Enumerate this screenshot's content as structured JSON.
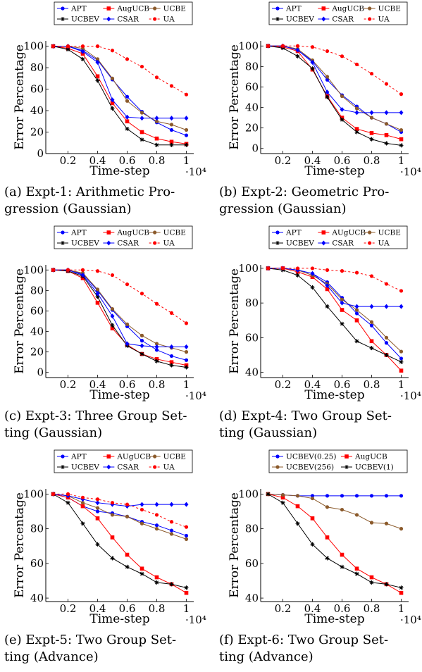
{
  "colors": {
    "APT": "#0000ff",
    "AugUCB": "#ff0000",
    "UCBE": "#8b5a2b",
    "UCBEV": "#000000",
    "CSAR": "#0000ff",
    "UA": "#ff0000"
  },
  "chart_data": [
    {
      "type": "line",
      "caption": [
        "(a) Expt-1: Arithmetic Pro-",
        "gression (Gaussian)"
      ],
      "xlabel": "Time-step",
      "ylabel": "Error Percentage",
      "x_multiplier": "·10⁴",
      "xlim": [
        0.05,
        1.05
      ],
      "ylim": [
        0,
        105
      ],
      "xticks": [
        0.2,
        0.4,
        0.6,
        0.8,
        1
      ],
      "xtick_labels": [
        "0.2",
        "0.4",
        "0.6",
        "0.8",
        "1"
      ],
      "yticks": [
        0,
        20,
        40,
        60,
        80,
        100
      ],
      "ytick_labels": [
        "0",
        "20",
        "40",
        "60",
        "80",
        "100"
      ],
      "legend": {
        "position": "top",
        "entries": [
          "APT",
          "AugUCB",
          "UCBE",
          "UCBEV",
          "CSAR",
          "UA"
        ]
      },
      "x": [
        0.1,
        0.2,
        0.3,
        0.4,
        0.5,
        0.6,
        0.7,
        0.8,
        0.9,
        1.0
      ],
      "series": [
        {
          "name": "APT",
          "values": [
            100,
            100,
            96,
            87,
            69,
            53,
            39,
            29,
            22,
            17
          ]
        },
        {
          "name": "AugUCB",
          "values": [
            100,
            98,
            93,
            72,
            47,
            30,
            20,
            14,
            11,
            9
          ]
        },
        {
          "name": "UCBE",
          "values": [
            100,
            100,
            98,
            88,
            70,
            49,
            38,
            30,
            27,
            22
          ]
        },
        {
          "name": "UCBEV",
          "values": [
            100,
            97,
            88,
            68,
            42,
            23,
            13,
            8,
            8,
            8
          ]
        },
        {
          "name": "CSAR",
          "values": [
            100,
            100,
            95,
            85,
            50,
            34,
            33,
            33,
            33,
            33
          ]
        },
        {
          "name": "UA",
          "values": [
            100,
            100,
            100,
            100,
            96,
            88,
            81,
            71,
            63,
            55
          ]
        }
      ]
    },
    {
      "type": "line",
      "caption": [
        "(b) Expt-2: Geometric Pro-",
        "gression (Gaussian)"
      ],
      "xlabel": "Time-step",
      "ylabel": "Error Percentage",
      "x_multiplier": "·10⁴",
      "xlim": [
        0.05,
        1.05
      ],
      "ylim": [
        -5,
        105
      ],
      "xticks": [
        0.2,
        0.4,
        0.6,
        0.8,
        1
      ],
      "xtick_labels": [
        "0.2",
        "0.4",
        "0.6",
        "0.8",
        "1"
      ],
      "yticks": [
        0,
        20,
        40,
        60,
        80,
        100
      ],
      "ytick_labels": [
        "0",
        "20",
        "40",
        "60",
        "80",
        "100"
      ],
      "legend": {
        "position": "top",
        "entries": [
          "APT",
          "AugUCB",
          "UCBE",
          "UCBEV",
          "CSAR",
          "UA"
        ]
      },
      "x": [
        0.1,
        0.2,
        0.3,
        0.4,
        0.5,
        0.6,
        0.7,
        0.8,
        0.9,
        1.0
      ],
      "series": [
        {
          "name": "APT",
          "values": [
            100,
            100,
            97,
            85,
            67,
            52,
            41,
            30,
            24,
            16
          ]
        },
        {
          "name": "AugUCB",
          "values": [
            100,
            99,
            95,
            77,
            51,
            30,
            19,
            15,
            13,
            9
          ]
        },
        {
          "name": "UCBE",
          "values": [
            100,
            100,
            97,
            86,
            70,
            51,
            39,
            30,
            24,
            18
          ]
        },
        {
          "name": "UCBEV",
          "values": [
            100,
            98,
            90,
            78,
            50,
            28,
            16,
            9,
            5,
            3
          ]
        },
        {
          "name": "CSAR",
          "values": [
            100,
            100,
            96,
            84,
            55,
            38,
            35,
            35,
            35,
            35
          ]
        },
        {
          "name": "UA",
          "values": [
            100,
            100,
            100,
            99,
            95,
            90,
            82,
            73,
            63,
            53
          ]
        }
      ]
    },
    {
      "type": "line",
      "caption": [
        "(c) Expt-3: Three Group Set-",
        "ting (Gaussian)"
      ],
      "xlabel": "Time-step",
      "ylabel": "Error Percentage",
      "x_multiplier": "·10⁴",
      "xlim": [
        0.05,
        1.05
      ],
      "ylim": [
        -5,
        105
      ],
      "xticks": [
        0.2,
        0.4,
        0.6,
        0.8,
        1
      ],
      "xtick_labels": [
        "0.2",
        "0.4",
        "0.6",
        "0.8",
        "1"
      ],
      "yticks": [
        0,
        20,
        40,
        60,
        80,
        100
      ],
      "ytick_labels": [
        "0",
        "20",
        "40",
        "60",
        "80",
        "100"
      ],
      "legend": {
        "position": "top",
        "entries": [
          "APT",
          "AugUCB",
          "UCBE",
          "UCBEV",
          "CSAR",
          "UA"
        ]
      },
      "x": [
        0.1,
        0.2,
        0.3,
        0.4,
        0.5,
        0.6,
        0.7,
        0.8,
        0.9,
        1.0
      ],
      "series": [
        {
          "name": "APT",
          "values": [
            100,
            100,
            96,
            80,
            61,
            45,
            31,
            22,
            16,
            12
          ]
        },
        {
          "name": "AugUCB",
          "values": [
            100,
            99,
            92,
            68,
            43,
            27,
            18,
            13,
            10,
            7
          ]
        },
        {
          "name": "UCBE",
          "values": [
            100,
            100,
            97,
            81,
            62,
            47,
            36,
            28,
            24,
            20
          ]
        },
        {
          "name": "UCBEV",
          "values": [
            100,
            99,
            94,
            74,
            46,
            26,
            18,
            11,
            7,
            5
          ]
        },
        {
          "name": "CSAR",
          "values": [
            100,
            100,
            95,
            77,
            55,
            28,
            26,
            25,
            25,
            25
          ]
        },
        {
          "name": "UA",
          "values": [
            100,
            100,
            100,
            99,
            95,
            86,
            77,
            67,
            58,
            48
          ]
        }
      ]
    },
    {
      "type": "line",
      "caption": [
        "(d) Expt-4: Two Group Set-",
        "ting (Gaussian)"
      ],
      "xlabel": "Time-step",
      "ylabel": "Error Percentage",
      "x_multiplier": "·10⁴",
      "xlim": [
        0.05,
        1.05
      ],
      "ylim": [
        37,
        102
      ],
      "xticks": [
        0.2,
        0.4,
        0.6,
        0.8,
        1
      ],
      "xtick_labels": [
        "0.2",
        "0.4",
        "0.6",
        "0.8",
        "1"
      ],
      "yticks": [
        40,
        60,
        80,
        100
      ],
      "ytick_labels": [
        "40",
        "60",
        "80",
        "100"
      ],
      "legend": {
        "position": "top",
        "entries": [
          "APT",
          "AUgUCB",
          "UCBE",
          "UCBEV",
          "CSAR",
          "UA"
        ]
      },
      "x": [
        0.1,
        0.2,
        0.3,
        0.4,
        0.5,
        0.6,
        0.7,
        0.8,
        0.9,
        1.0
      ],
      "series": [
        {
          "name": "APT",
          "values": [
            100,
            100,
            99,
            97,
            92,
            83,
            74,
            67,
            57,
            48
          ]
        },
        {
          "name": "AUgUCB",
          "values": [
            100,
            100,
            98,
            95,
            88,
            76,
            70,
            58,
            50,
            41
          ]
        },
        {
          "name": "UCBE",
          "values": [
            100,
            100,
            99,
            96,
            91,
            82,
            76,
            69,
            60,
            52
          ]
        },
        {
          "name": "UCBEV",
          "values": [
            100,
            99,
            96,
            89,
            78,
            68,
            58,
            54,
            50,
            46
          ]
        },
        {
          "name": "CSAR",
          "values": [
            100,
            100,
            99,
            97,
            90,
            80,
            78,
            78,
            78,
            78
          ]
        },
        {
          "name": "UA",
          "values": [
            100,
            100,
            100,
            100,
            99,
            98.5,
            97.5,
            95.5,
            91,
            87
          ]
        }
      ]
    },
    {
      "type": "line",
      "caption": [
        "(e) Expt-5: Two Group Set-",
        "ting (Advance)"
      ],
      "xlabel": "Time-step",
      "ylabel": "Error Percentage",
      "x_multiplier": "·10⁴",
      "xlim": [
        0.05,
        1.05
      ],
      "ylim": [
        38,
        103
      ],
      "xticks": [
        0.2,
        0.4,
        0.6,
        0.8,
        1
      ],
      "xtick_labels": [
        "0.2",
        "0.4",
        "0.6",
        "0.8",
        "1"
      ],
      "yticks": [
        40,
        60,
        80,
        100
      ],
      "ytick_labels": [
        "40",
        "60",
        "80",
        "100"
      ],
      "legend": {
        "position": "top",
        "entries": [
          "APT",
          "AUgUCB",
          "UCBE",
          "UCBEV",
          "CSAR",
          "UA"
        ]
      },
      "x": [
        0.1,
        0.2,
        0.3,
        0.4,
        0.5,
        0.6,
        0.7,
        0.8,
        0.9,
        1.0
      ],
      "series": [
        {
          "name": "APT",
          "values": [
            100,
            98,
            93,
            90,
            89,
            87,
            84,
            82,
            79,
            76
          ]
        },
        {
          "name": "AUgUCB",
          "values": [
            100,
            98,
            93,
            86,
            75,
            65,
            57,
            52,
            48,
            43
          ]
        },
        {
          "name": "UCBE",
          "values": [
            100,
            99,
            95,
            92,
            88,
            87,
            83,
            80,
            77,
            74
          ]
        },
        {
          "name": "UCBEV",
          "values": [
            100,
            95,
            83,
            71,
            63,
            58,
            54,
            49,
            48,
            46
          ]
        },
        {
          "name": "CSAR",
          "values": [
            100,
            99,
            97,
            95,
            94,
            93,
            94,
            94,
            94,
            94
          ]
        },
        {
          "name": "UA",
          "values": [
            100,
            100,
            98,
            97,
            95,
            94,
            91,
            88,
            84,
            81
          ]
        }
      ]
    },
    {
      "type": "line",
      "caption": [
        "(f) Expt-6: Two Group Set-",
        "ting (Advance)"
      ],
      "xlabel": "Time-step",
      "ylabel": "Error Percentage",
      "x_multiplier": "·10⁴",
      "xlim": [
        0.05,
        1.05
      ],
      "ylim": [
        38,
        103
      ],
      "xticks": [
        0.2,
        0.4,
        0.6,
        0.8,
        1
      ],
      "xtick_labels": [
        "0.2",
        "0.4",
        "0.6",
        "0.8",
        "1"
      ],
      "yticks": [
        40,
        60,
        80,
        100
      ],
      "ytick_labels": [
        "40",
        "60",
        "80",
        "100"
      ],
      "legend": {
        "position": "top",
        "entries": [
          "UCBEV(0.25)",
          "AugUCB",
          "UCBEV(256)",
          "UCBEV(1)"
        ]
      },
      "x": [
        0.1,
        0.2,
        0.3,
        0.4,
        0.5,
        0.6,
        0.7,
        0.8,
        0.9,
        1.0
      ],
      "series": [
        {
          "name": "UCBEV(0.25)",
          "values": [
            100,
            99.5,
            99,
            99,
            99,
            99,
            99,
            99,
            99,
            99
          ]
        },
        {
          "name": "AugUCB",
          "values": [
            100,
            98,
            93,
            86,
            75,
            65,
            57,
            52,
            48,
            43
          ]
        },
        {
          "name": "UCBEV(256)",
          "values": [
            100,
            99.5,
            99,
            97.5,
            92.5,
            91,
            88,
            83.5,
            83,
            80
          ]
        },
        {
          "name": "UCBEV(1)",
          "values": [
            100,
            95,
            83,
            71,
            63,
            58,
            54,
            49,
            48,
            46
          ]
        }
      ]
    }
  ]
}
